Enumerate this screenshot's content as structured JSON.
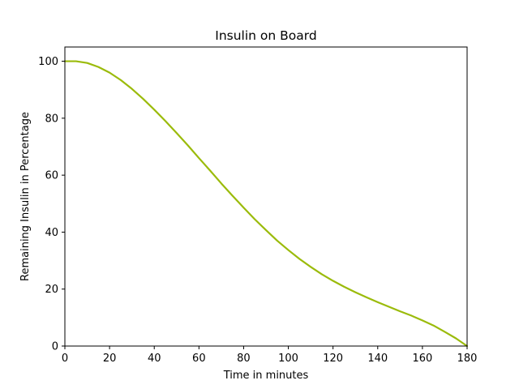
{
  "chart_data": {
    "type": "line",
    "title": "Insulin on Board",
    "xlabel": "Time in minutes",
    "ylabel": "Remaining Insulin in Percentage",
    "xlim": [
      0,
      180
    ],
    "ylim": [
      0,
      105
    ],
    "xticks": [
      0,
      20,
      40,
      60,
      80,
      100,
      120,
      140,
      160,
      180
    ],
    "yticks": [
      0,
      20,
      40,
      60,
      80,
      100
    ],
    "grid": false,
    "line_color": "#9bbb0b",
    "series": [
      {
        "x": [
          0,
          5,
          10,
          15,
          20,
          25,
          30,
          35,
          40,
          45,
          50,
          55,
          60,
          65,
          70,
          75,
          80,
          85,
          90,
          95,
          100,
          105,
          110,
          115,
          120,
          125,
          130,
          135,
          140,
          145,
          150,
          155,
          160,
          165,
          170,
          175,
          180
        ],
        "values": [
          100,
          100,
          99.4,
          98.0,
          96.0,
          93.4,
          90.3,
          86.8,
          83.0,
          79.0,
          74.8,
          70.5,
          66.0,
          61.6,
          57.1,
          52.8,
          48.6,
          44.5,
          40.7,
          37.0,
          33.7,
          30.6,
          27.8,
          25.2,
          22.9,
          20.8,
          18.9,
          17.1,
          15.4,
          13.8,
          12.2,
          10.7,
          9.0,
          7.2,
          5.0,
          2.7,
          0
        ]
      }
    ]
  }
}
